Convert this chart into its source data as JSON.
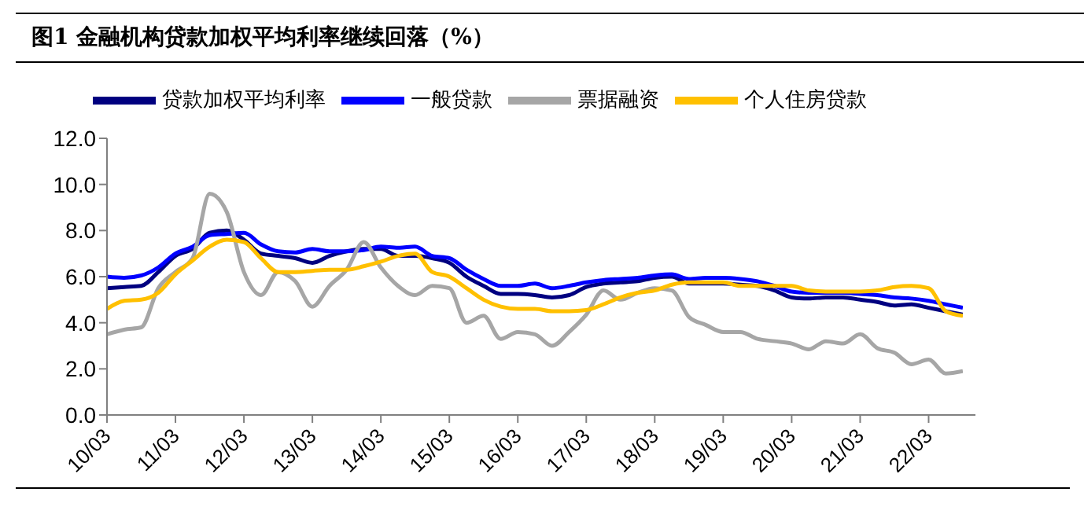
{
  "chart_data": {
    "type": "line",
    "title": "图1  金融机构贷款加权平均利率继续回落（%）",
    "categories": [
      "10/03",
      null,
      null,
      null,
      "11/03",
      null,
      null,
      null,
      "12/03",
      null,
      null,
      null,
      "13/03",
      null,
      null,
      null,
      "14/03",
      null,
      null,
      null,
      "15/03",
      null,
      null,
      null,
      "16/03",
      null,
      null,
      null,
      "17/03",
      null,
      null,
      null,
      "18/03",
      null,
      null,
      null,
      "19/03",
      null,
      null,
      null,
      "20/03",
      null,
      null,
      null,
      "21/03",
      null,
      null,
      null,
      "22/03",
      null,
      null
    ],
    "series": [
      {
        "name": "贷款加权平均利率",
        "color": "#000080",
        "values": [
          5.5,
          5.55,
          5.6,
          6.2,
          6.9,
          7.2,
          7.9,
          8.0,
          7.6,
          7.0,
          6.9,
          6.8,
          6.6,
          6.9,
          7.1,
          7.2,
          7.2,
          6.9,
          6.9,
          6.8,
          6.6,
          6.0,
          5.6,
          5.25,
          5.25,
          5.2,
          5.1,
          5.2,
          5.55,
          5.7,
          5.75,
          5.8,
          5.95,
          6.0,
          5.7,
          5.7,
          5.7,
          5.65,
          5.6,
          5.4,
          5.1,
          5.05,
          5.1,
          5.1,
          5.0,
          4.9,
          4.75,
          4.8,
          4.65,
          4.5,
          4.35
        ]
      },
      {
        "name": "一般贷款",
        "color": "#0000ff",
        "values": [
          6.0,
          5.95,
          6.05,
          6.4,
          7.0,
          7.3,
          7.8,
          7.85,
          7.9,
          7.4,
          7.1,
          7.05,
          7.2,
          7.1,
          7.1,
          7.15,
          7.3,
          7.25,
          7.3,
          6.9,
          6.8,
          6.3,
          5.9,
          5.6,
          5.6,
          5.7,
          5.5,
          5.6,
          5.75,
          5.85,
          5.9,
          5.95,
          6.05,
          6.1,
          5.9,
          5.95,
          5.95,
          5.9,
          5.8,
          5.6,
          5.35,
          5.3,
          5.3,
          5.3,
          5.25,
          5.2,
          5.1,
          5.05,
          4.95,
          4.8,
          4.65
        ]
      },
      {
        "name": "票据融资",
        "color": "#a6a6a6",
        "values": [
          3.5,
          3.7,
          3.8,
          5.5,
          6.2,
          6.8,
          9.6,
          8.8,
          6.2,
          5.2,
          6.2,
          5.8,
          4.7,
          5.6,
          6.3,
          7.5,
          6.4,
          5.6,
          5.2,
          5.6,
          5.5,
          4.0,
          4.3,
          3.3,
          3.6,
          3.5,
          3.0,
          3.6,
          4.35,
          5.4,
          5.0,
          5.3,
          5.5,
          5.4,
          4.25,
          3.9,
          3.6,
          3.6,
          3.3,
          3.2,
          3.1,
          2.85,
          3.2,
          3.1,
          3.5,
          2.9,
          2.7,
          2.2,
          2.4,
          1.8,
          1.9
        ]
      },
      {
        "name": "个人住房贷款",
        "color": "#ffc000",
        "values": [
          4.6,
          4.95,
          5.0,
          5.3,
          6.1,
          6.7,
          7.3,
          7.6,
          7.5,
          6.8,
          6.2,
          6.2,
          6.25,
          6.3,
          6.3,
          6.45,
          6.65,
          6.9,
          7.0,
          6.2,
          6.0,
          5.5,
          5.0,
          4.7,
          4.6,
          4.6,
          4.5,
          4.5,
          4.55,
          4.8,
          5.1,
          5.3,
          5.4,
          5.65,
          5.75,
          5.75,
          5.75,
          5.6,
          5.6,
          5.6,
          5.6,
          5.4,
          5.35,
          5.35,
          5.35,
          5.4,
          5.55,
          5.6,
          5.5,
          4.5,
          4.3
        ]
      }
    ],
    "ylim": [
      0,
      12
    ],
    "yticks": [
      {
        "value": 0,
        "label": "0.0"
      },
      {
        "value": 2,
        "label": "2.0"
      },
      {
        "value": 4,
        "label": "4.0"
      },
      {
        "value": 6,
        "label": "6.0"
      },
      {
        "value": 8,
        "label": "8.0"
      },
      {
        "value": 10,
        "label": "10.0"
      },
      {
        "value": 12,
        "label": "12.0"
      }
    ],
    "legend": "top",
    "grid": false,
    "marker": "none",
    "line_style": "solid"
  }
}
